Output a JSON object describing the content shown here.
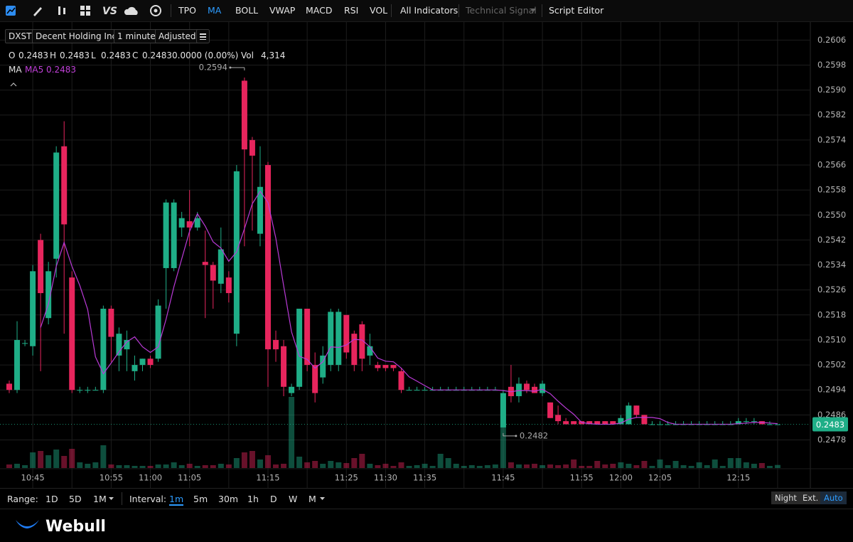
{
  "toolbar": {
    "vs": "VS",
    "items": [
      "TPO",
      "MA",
      "BOLL",
      "VWAP",
      "MACD",
      "RSI",
      "VOL"
    ],
    "selected": 1,
    "all_indicators": "All Indicators",
    "technical_signal": "Technical Signal",
    "script_editor": "Script Editor"
  },
  "symbol": {
    "ticker": "DXST",
    "name": "Decent Holding Inc.",
    "interval": "1 minute",
    "adjust": "Adjusted"
  },
  "quote": [
    {
      "label": "O",
      "value": "0.2483"
    },
    {
      "label": "H",
      "value": "0.2483"
    },
    {
      "label": "L",
      "value": "0.2483"
    },
    {
      "label": "C",
      "value": "0.2483"
    }
  ],
  "change": "0.0000 (0.00%)",
  "volume": {
    "label": "Vol",
    "value": "4,314"
  },
  "indicator": {
    "label": "MA",
    "series": "MA5 0.2483"
  },
  "chart_data": {
    "type": "candlestick",
    "categories": [
      null,
      null,
      null,
      "10:45",
      null,
      null,
      null,
      null,
      null,
      null,
      null,
      null,
      null,
      "10:55",
      null,
      null,
      null,
      null,
      "11:00",
      null,
      null,
      null,
      null,
      "11:05",
      null,
      null,
      null,
      null,
      null,
      null,
      null,
      null,
      null,
      "11:15",
      null,
      null,
      null,
      null,
      null,
      null,
      null,
      null,
      null,
      "11:25",
      null,
      null,
      null,
      null,
      "11:30",
      null,
      null,
      null,
      null,
      "11:35",
      null,
      null,
      null,
      null,
      null,
      null,
      null,
      null,
      null,
      "11:45",
      null,
      null,
      null,
      null,
      null,
      null,
      null,
      null,
      null,
      "11:55",
      null,
      null,
      null,
      null,
      "12:00",
      null,
      null,
      null,
      null,
      "12:05",
      null,
      null,
      null,
      null,
      null,
      null,
      null,
      null,
      null,
      "12:15",
      null,
      null,
      null,
      null,
      null
    ],
    "open": [
      0.2496,
      0.2494,
      0.2509,
      0.2508,
      0.2542,
      0.2517,
      0.2536,
      0.2572,
      0.253,
      0.2494,
      0.2494,
      0.2494,
      0.2494,
      0.252,
      0.2505,
      0.2507,
      0.25,
      0.2502,
      0.2504,
      0.2504,
      0.2533,
      0.2533,
      0.2546,
      0.2548,
      0.2546,
      0.2535,
      0.2534,
      0.2528,
      0.253,
      0.2512,
      0.2593,
      0.2574,
      0.2544,
      0.2566,
      0.251,
      0.2508,
      0.2493,
      0.2495,
      0.252,
      0.2502,
      0.2498,
      0.2502,
      0.2502,
      0.2518,
      0.2512,
      0.2515,
      0.2505,
      0.2502,
      0.2502,
      0.2502,
      0.25,
      0.2494,
      0.2494,
      0.2494,
      0.2494,
      0.2494,
      0.2494,
      0.2494,
      0.2494,
      0.2494,
      0.2494,
      0.2494,
      0.2494,
      0.2482,
      0.2495,
      0.2492,
      0.2496,
      0.2495,
      0.2493,
      0.249,
      0.2486,
      0.2484,
      0.2484,
      0.2484,
      0.2484,
      0.2484,
      0.2484,
      0.2484,
      0.2483,
      0.2483,
      0.2489,
      0.2486,
      0.2483,
      0.2483,
      0.2483,
      0.2483,
      0.2483,
      0.2483,
      0.2483,
      0.2483,
      0.2483,
      0.2483,
      0.2483,
      0.2483,
      0.2484,
      0.2484,
      0.2484,
      0.2483,
      0.2483
    ],
    "high": [
      0.2497,
      0.2516,
      0.251,
      0.2534,
      0.2544,
      0.2535,
      0.2572,
      0.258,
      0.2532,
      0.2495,
      0.2495,
      0.2495,
      0.2521,
      0.2521,
      0.2514,
      0.2513,
      0.2505,
      0.2504,
      0.2505,
      0.2523,
      0.2555,
      0.2555,
      0.2551,
      0.2558,
      0.2551,
      0.2545,
      0.2535,
      0.2546,
      0.2532,
      0.2566,
      0.2594,
      0.2575,
      0.2572,
      0.2567,
      0.2513,
      0.251,
      0.2496,
      0.252,
      0.252,
      0.2506,
      0.2508,
      0.252,
      0.252,
      0.2518,
      0.2513,
      0.2516,
      0.2512,
      0.2503,
      0.2502,
      0.2502,
      0.2501,
      0.2495,
      0.2495,
      0.2495,
      0.2495,
      0.2495,
      0.2495,
      0.2495,
      0.2495,
      0.2495,
      0.2495,
      0.2495,
      0.2495,
      0.2494,
      0.2502,
      0.2498,
      0.2497,
      0.2496,
      0.2497,
      0.249,
      0.2489,
      0.2485,
      0.2484,
      0.2484,
      0.2484,
      0.2484,
      0.2484,
      0.2484,
      0.2486,
      0.249,
      0.2489,
      0.2486,
      0.2484,
      0.2484,
      0.2484,
      0.2484,
      0.2484,
      0.2484,
      0.2484,
      0.2484,
      0.2484,
      0.2484,
      0.2484,
      0.2485,
      0.2485,
      0.2485,
      0.2484,
      0.2484,
      0.2483
    ],
    "low": [
      0.2493,
      0.2493,
      0.2508,
      0.2505,
      0.25,
      0.2515,
      0.253,
      0.2512,
      0.2493,
      0.2493,
      0.2493,
      0.2494,
      0.2493,
      0.2503,
      0.25,
      0.25,
      0.2497,
      0.25,
      0.2501,
      0.2503,
      0.252,
      0.2532,
      0.2543,
      0.254,
      0.2545,
      0.2517,
      0.252,
      0.2525,
      0.2522,
      0.2508,
      0.254,
      0.2545,
      0.254,
      0.2495,
      0.2503,
      0.2492,
      0.2492,
      0.2494,
      0.25,
      0.249,
      0.2496,
      0.25,
      0.25,
      0.2504,
      0.25,
      0.25,
      0.2502,
      0.25,
      0.25,
      0.25,
      0.2493,
      0.2494,
      0.2494,
      0.2494,
      0.2494,
      0.2494,
      0.2494,
      0.2494,
      0.2494,
      0.2494,
      0.2494,
      0.2494,
      0.2494,
      0.2482,
      0.249,
      0.249,
      0.2493,
      0.2493,
      0.2492,
      0.2485,
      0.2483,
      0.2483,
      0.2483,
      0.2483,
      0.2483,
      0.2483,
      0.2483,
      0.2483,
      0.2483,
      0.2483,
      0.2485,
      0.2483,
      0.2483,
      0.2483,
      0.2483,
      0.2483,
      0.2483,
      0.2483,
      0.2483,
      0.2483,
      0.2483,
      0.2483,
      0.2483,
      0.2483,
      0.2483,
      0.2483,
      0.2483,
      0.2483,
      0.2483
    ],
    "close": [
      0.2494,
      0.251,
      0.2509,
      0.2532,
      0.2525,
      0.2532,
      0.257,
      0.2547,
      0.2494,
      0.2494,
      0.2494,
      0.2494,
      0.252,
      0.2511,
      0.2512,
      0.251,
      0.2502,
      0.2504,
      0.2502,
      0.2521,
      0.2554,
      0.2554,
      0.2549,
      0.2546,
      0.2549,
      0.2534,
      0.2529,
      0.2539,
      0.2525,
      0.2564,
      0.2571,
      0.2569,
      0.2559,
      0.2507,
      0.2507,
      0.2495,
      0.2495,
      0.252,
      0.2502,
      0.2493,
      0.2505,
      0.2519,
      0.2519,
      0.2506,
      0.2502,
      0.2504,
      0.2508,
      0.2501,
      0.2501,
      0.2501,
      0.2494,
      0.2494,
      0.2494,
      0.2494,
      0.2494,
      0.2494,
      0.2494,
      0.2494,
      0.2494,
      0.2494,
      0.2494,
      0.2494,
      0.2494,
      0.2493,
      0.2492,
      0.2496,
      0.2494,
      0.2493,
      0.2496,
      0.2485,
      0.2484,
      0.2483,
      0.2483,
      0.2483,
      0.2483,
      0.2483,
      0.2483,
      0.2483,
      0.2485,
      0.2489,
      0.2486,
      0.2483,
      0.2483,
      0.2483,
      0.2483,
      0.2483,
      0.2483,
      0.2483,
      0.2483,
      0.2483,
      0.2483,
      0.2483,
      0.2483,
      0.2484,
      0.2484,
      0.2484,
      0.2483,
      0.2483,
      0.2483
    ],
    "volume": [
      5000,
      6000,
      4000,
      22000,
      24000,
      18000,
      26000,
      17000,
      27000,
      8000,
      6000,
      8000,
      32000,
      5000,
      4000,
      4000,
      3000,
      3000,
      3000,
      5000,
      5000,
      8000,
      4000,
      6000,
      3000,
      4000,
      4000,
      6000,
      5000,
      14000,
      22000,
      24000,
      12000,
      18000,
      5000,
      6000,
      100000,
      16000,
      8000,
      10000,
      6000,
      10000,
      8000,
      7000,
      14000,
      20000,
      6000,
      4000,
      6000,
      3000,
      8000,
      3000,
      4000,
      6000,
      3000,
      20000,
      14000,
      6000,
      3000,
      4000,
      3000,
      4000,
      5000,
      98000,
      8000,
      5000,
      5000,
      6000,
      4000,
      5000,
      4000,
      5000,
      12000,
      3000,
      3000,
      10000,
      5000,
      6000,
      8000,
      6000,
      4000,
      10000,
      3000,
      12000,
      4000,
      10000,
      4000,
      3000,
      8000,
      4000,
      12000,
      3000,
      14000,
      14000,
      8000,
      6000,
      7000,
      3000,
      4314
    ],
    "ma5": {
      "color": "#b93ad6",
      "values": [
        null,
        null,
        null,
        null,
        0.2514,
        0.25216,
        0.25336,
        0.25412,
        0.25336,
        0.25274,
        0.25198,
        0.25046,
        0.24992,
        0.25026,
        0.25062,
        0.25094,
        0.2511,
        0.25078,
        0.2506,
        0.25078,
        0.25166,
        0.2527,
        0.2536,
        0.25448,
        0.25504,
        0.25464,
        0.25414,
        0.25394,
        0.25352,
        0.25382,
        0.25456,
        0.25536,
        0.25576,
        0.2554,
        0.25426,
        0.25274,
        0.25126,
        0.25048,
        0.25038,
        0.2501,
        0.2503,
        0.25078,
        0.25076,
        0.25084,
        0.25102,
        0.251,
        0.25078,
        0.25042,
        0.25032,
        0.2503,
        0.2501,
        0.24982,
        0.24968,
        0.24954,
        0.2494,
        0.2494,
        0.2494,
        0.2494,
        0.2494,
        0.2494,
        0.2494,
        0.2494,
        0.2494,
        0.24938,
        0.24934,
        0.24938,
        0.24938,
        0.24936,
        0.24942,
        0.24928,
        0.24904,
        0.24882,
        0.24862,
        0.24836,
        0.24832,
        0.2483,
        0.2483,
        0.2483,
        0.24834,
        0.24846,
        0.24852,
        0.24852,
        0.24852,
        0.24848,
        0.24836,
        0.2483,
        0.2483,
        0.2483,
        0.2483,
        0.2483,
        0.2483,
        0.2483,
        0.2483,
        0.24832,
        0.24834,
        0.24836,
        0.24836,
        0.24834,
        0.24832
      ]
    },
    "up_color": "#1fae87",
    "down_color": "#e7255d",
    "ylim": [
      0.2469,
      0.2612
    ],
    "yticks": [
      0.2606,
      0.2598,
      {
        "value": 0.259,
        "label": "0.2590"
      },
      0.2582,
      0.2574,
      0.2566,
      0.2558,
      {
        "value": 0.255,
        "label": "0.2550"
      },
      0.2542,
      0.2534,
      0.2526,
      0.2518,
      {
        "value": 0.251,
        "label": "0.2510"
      },
      0.2502,
      0.2494,
      0.2486,
      0.2478
    ],
    "grid": true
  },
  "range": {
    "label": "Range:",
    "options": [
      "1D",
      "5D",
      "1M"
    ]
  },
  "interval": {
    "label": "Interval:",
    "options": [
      "1m",
      "5m",
      "30m",
      "1h",
      "D",
      "W",
      "M"
    ],
    "selected": 0
  },
  "session": {
    "options": [
      "Night",
      "Ext.",
      "Auto"
    ],
    "selected": 2
  },
  "brand": "Webull"
}
